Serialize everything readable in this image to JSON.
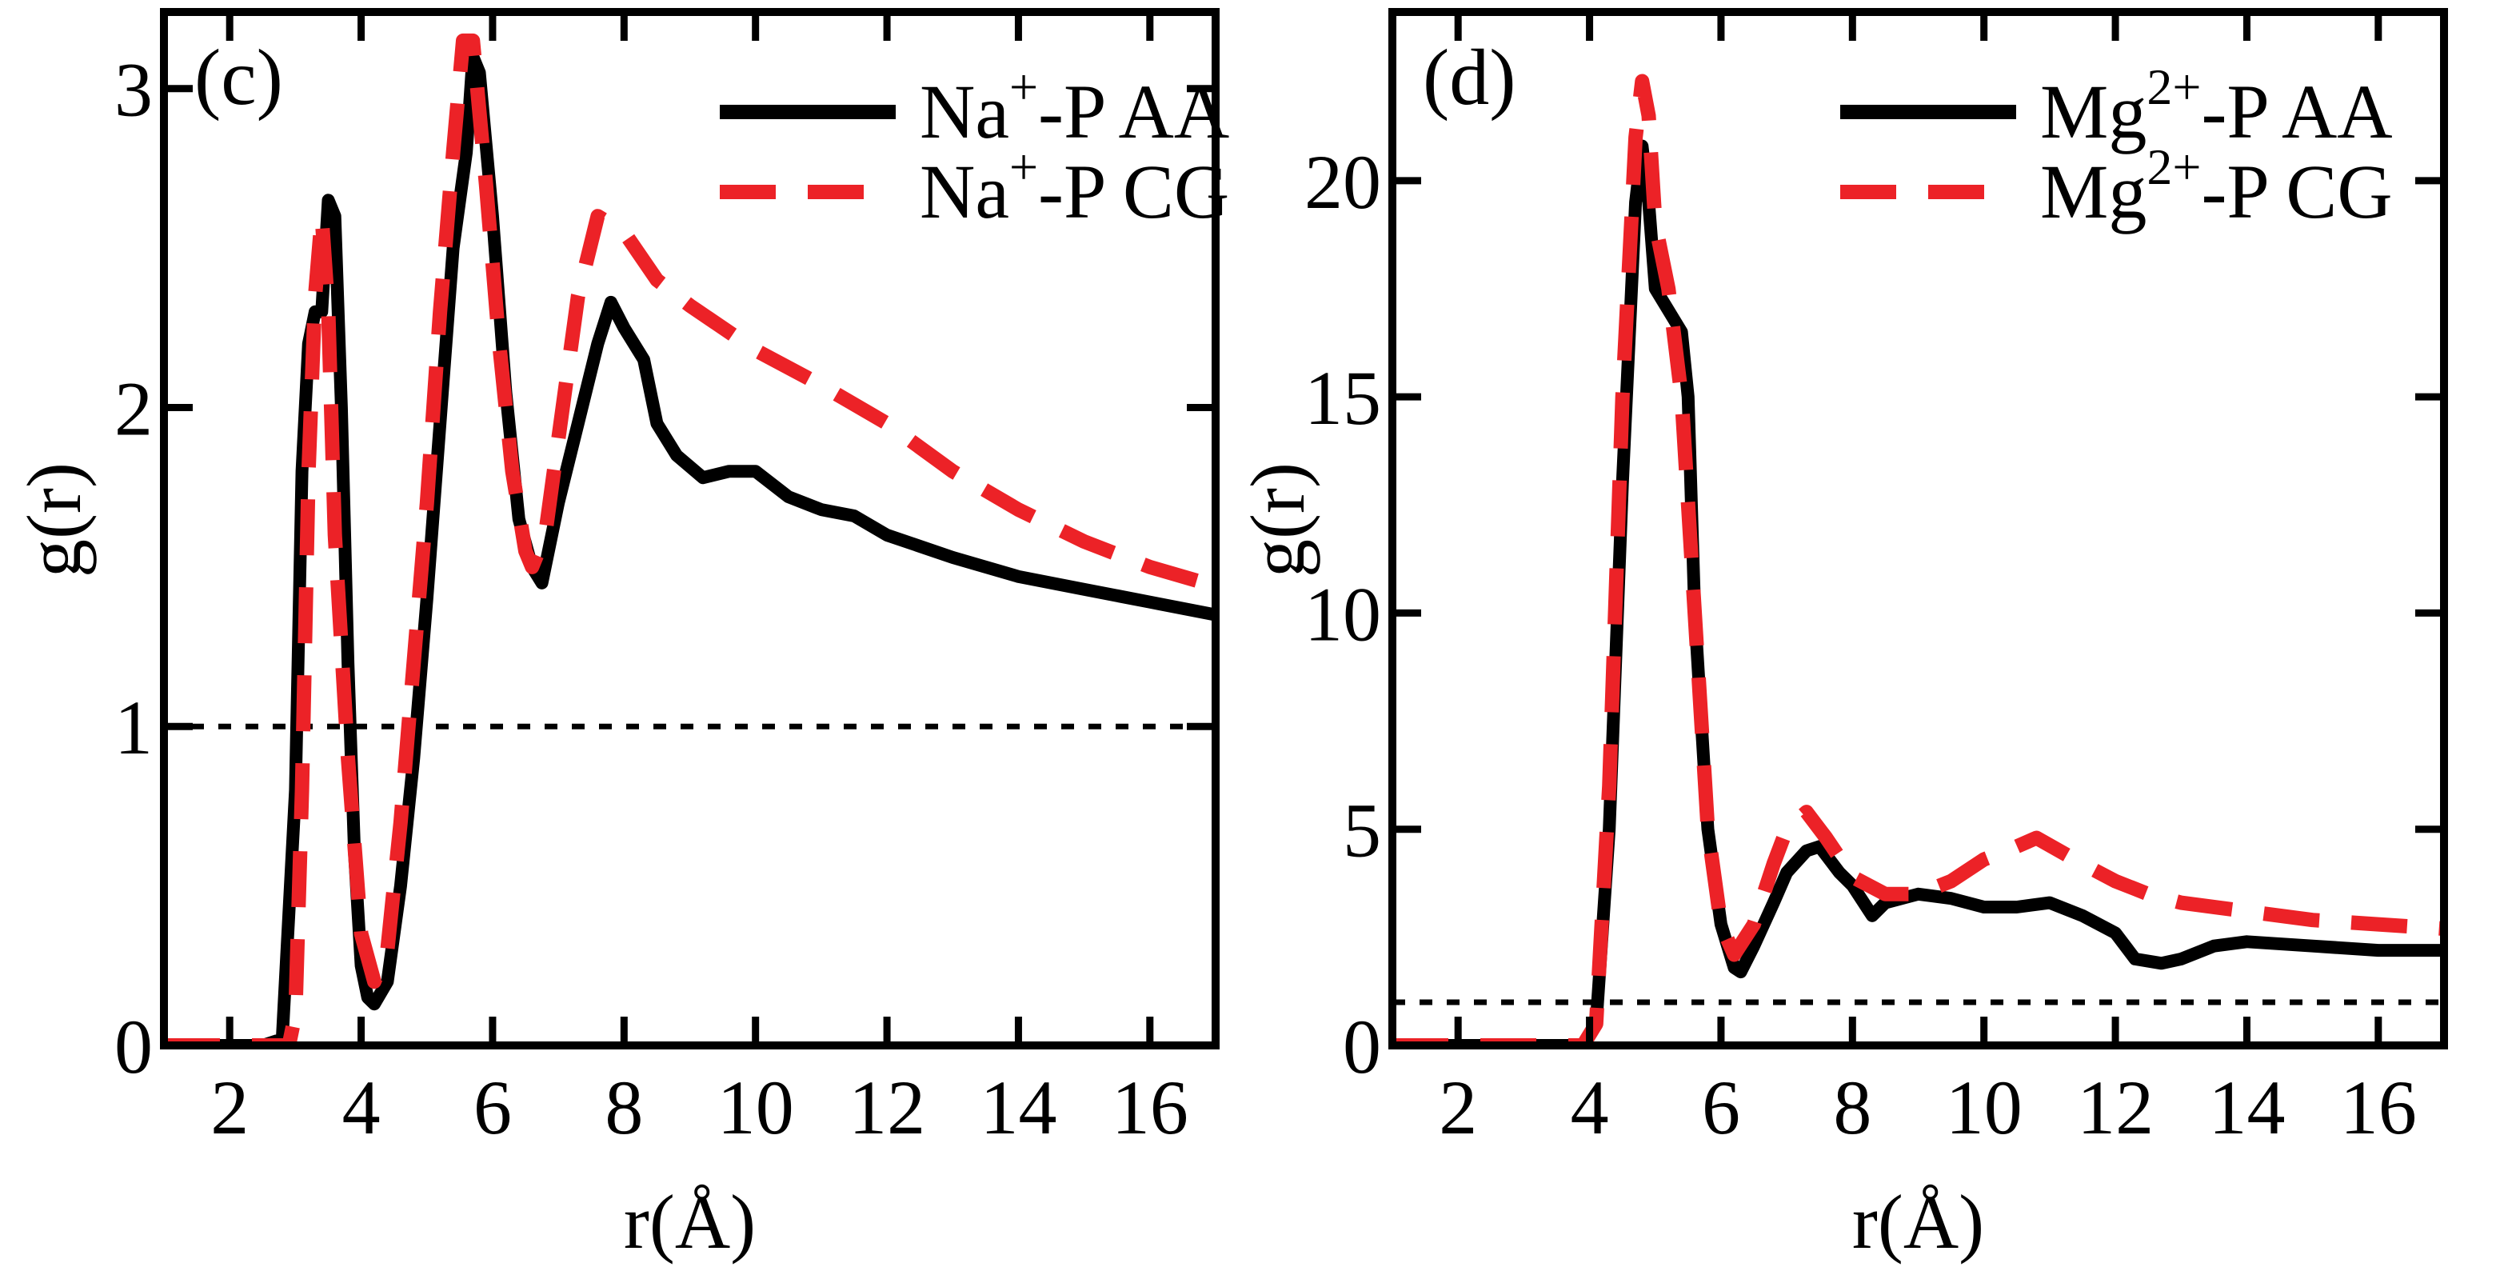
{
  "chart_data": [
    {
      "type": "line",
      "panel_label": "(c)",
      "xlabel": "r(Å)",
      "ylabel": "g(r)",
      "xlim": [
        1,
        17
      ],
      "ylim": [
        0,
        3.24
      ],
      "xticks": [
        2,
        4,
        6,
        8,
        10,
        12,
        14,
        16
      ],
      "yticks": [
        0,
        1,
        2,
        3
      ],
      "reference_line": 1,
      "grid": false,
      "legend_placement": "top-right",
      "series": [
        {
          "name": "Na⁺-P AA",
          "legend_main": "Na",
          "legend_sup": "+",
          "legend_rest": "-P AA",
          "color": "#000000",
          "style": "solid",
          "x": [
            1,
            2.5,
            2.8,
            3.0,
            3.1,
            3.2,
            3.3,
            3.4,
            3.5,
            3.6,
            3.7,
            3.8,
            3.9,
            4.0,
            4.1,
            4.2,
            4.4,
            4.6,
            4.8,
            5.0,
            5.2,
            5.4,
            5.6,
            5.7,
            5.8,
            6.0,
            6.2,
            6.4,
            6.6,
            6.75,
            7.0,
            7.3,
            7.6,
            7.8,
            8.0,
            8.3,
            8.5,
            8.8,
            9.2,
            9.6,
            10.0,
            10.5,
            11,
            11.5,
            12,
            13,
            14,
            15,
            16,
            17
          ],
          "y": [
            0,
            0,
            0.02,
            0.8,
            1.8,
            2.2,
            2.3,
            2.3,
            2.65,
            2.6,
            2.0,
            1.2,
            0.6,
            0.25,
            0.15,
            0.13,
            0.2,
            0.5,
            0.9,
            1.4,
            1.95,
            2.5,
            2.8,
            3.1,
            3.05,
            2.6,
            2.05,
            1.65,
            1.5,
            1.45,
            1.7,
            1.95,
            2.2,
            2.33,
            2.25,
            2.15,
            1.95,
            1.85,
            1.78,
            1.8,
            1.8,
            1.72,
            1.68,
            1.66,
            1.6,
            1.53,
            1.47,
            1.43,
            1.39,
            1.35
          ]
        },
        {
          "name": "Na⁺-P CG",
          "legend_main": "Na",
          "legend_sup": "+",
          "legend_rest": "-P CG",
          "color": "#ec2227",
          "style": "dashed",
          "x": [
            1,
            2.9,
            3.0,
            3.1,
            3.2,
            3.3,
            3.4,
            3.5,
            3.6,
            3.8,
            4.0,
            4.2,
            4.4,
            4.6,
            4.8,
            5.0,
            5.2,
            5.4,
            5.55,
            5.7,
            5.9,
            6.1,
            6.3,
            6.5,
            6.6,
            6.8,
            7.0,
            7.3,
            7.6,
            8.0,
            8.5,
            9,
            10,
            11,
            12,
            13,
            14,
            15,
            16,
            17
          ],
          "y": [
            0,
            0,
            0.1,
            0.8,
            1.8,
            2.35,
            2.6,
            2.3,
            1.6,
            0.9,
            0.35,
            0.2,
            0.3,
            0.7,
            1.2,
            1.7,
            2.3,
            2.8,
            3.15,
            3.15,
            2.7,
            2.2,
            1.8,
            1.55,
            1.5,
            1.6,
            1.9,
            2.35,
            2.6,
            2.55,
            2.4,
            2.32,
            2.18,
            2.07,
            1.95,
            1.8,
            1.68,
            1.58,
            1.5,
            1.44
          ]
        }
      ]
    },
    {
      "type": "line",
      "panel_label": "(d)",
      "xlabel": "r(Å)",
      "ylabel": "g(r)",
      "xlim": [
        1,
        17
      ],
      "ylim": [
        0,
        23.9
      ],
      "xticks": [
        2,
        4,
        6,
        8,
        10,
        12,
        14,
        16
      ],
      "yticks": [
        0,
        5,
        10,
        15,
        20
      ],
      "reference_line": 1,
      "grid": false,
      "legend_placement": "top-right",
      "series": [
        {
          "name": "Mg²⁺-P AA",
          "legend_main": "Mg",
          "legend_sup": "2+",
          "legend_rest": "-P AA",
          "color": "#000000",
          "style": "solid",
          "x": [
            1,
            3.9,
            4.1,
            4.3,
            4.5,
            4.7,
            4.8,
            4.9,
            5.0,
            5.2,
            5.4,
            5.5,
            5.6,
            5.8,
            6.0,
            6.2,
            6.3,
            6.5,
            6.8,
            7.0,
            7.3,
            7.5,
            7.8,
            8.0,
            8.3,
            8.5,
            9,
            9.5,
            10,
            10.5,
            11,
            11.5,
            12,
            12.3,
            12.7,
            13,
            13.5,
            14,
            15,
            16,
            17
          ],
          "y": [
            0,
            0,
            0.5,
            5,
            13,
            19.5,
            20.8,
            19.5,
            17.5,
            17.0,
            16.5,
            15,
            10,
            5,
            2.8,
            1.8,
            1.7,
            2.3,
            3.3,
            4.0,
            4.5,
            4.6,
            4.0,
            3.7,
            3.0,
            3.3,
            3.5,
            3.4,
            3.2,
            3.2,
            3.3,
            3.0,
            2.6,
            2.0,
            1.9,
            2.0,
            2.3,
            2.4,
            2.3,
            2.2,
            2.2
          ]
        },
        {
          "name": "Mg²⁺-P CG",
          "legend_main": "Mg",
          "legend_sup": "2+",
          "legend_rest": "-P CG",
          "color": "#ec2227",
          "style": "dashed",
          "x": [
            1,
            3.9,
            4.1,
            4.3,
            4.5,
            4.7,
            4.8,
            4.9,
            5.0,
            5.2,
            5.4,
            5.6,
            5.8,
            6.0,
            6.2,
            6.5,
            6.8,
            7.0,
            7.3,
            7.6,
            8.0,
            8.5,
            9,
            9.5,
            10,
            10.5,
            10.8,
            11.5,
            12,
            12.5,
            13,
            14,
            15,
            16,
            17
          ],
          "y": [
            0,
            0,
            0.5,
            6,
            15,
            21,
            22.3,
            21.5,
            19,
            17.5,
            15,
            10,
            5,
            2.8,
            2.1,
            2.8,
            4.2,
            5.0,
            5.4,
            4.8,
            3.9,
            3.5,
            3.5,
            3.8,
            4.3,
            4.6,
            4.8,
            4.2,
            3.8,
            3.5,
            3.3,
            3.1,
            2.9,
            2.8,
            2.7
          ]
        }
      ]
    }
  ]
}
